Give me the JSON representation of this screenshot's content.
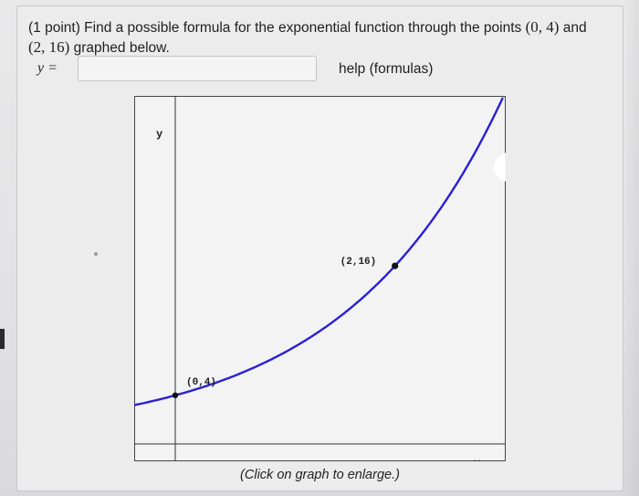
{
  "problem": {
    "text_line1": "(1 point) Find a possible formula for the exponential function through the points ",
    "point_a": "(0, 4)",
    "text_and": " and",
    "point_b": "(2, 16)",
    "text_line2": " graphed below."
  },
  "answer": {
    "label": "y =",
    "value": "",
    "placeholder": ""
  },
  "help_link": "help (formulas)",
  "graph": {
    "y_axis_label": "y",
    "x_axis_marker": "×",
    "point_a_label": "(0,4)",
    "point_b_label": "(2,16)",
    "caption": "(Click on graph to enlarge.)",
    "curve_color": "#2a1fd6",
    "axis_color": "#333333"
  },
  "chart_data": {
    "type": "line",
    "function": "y = 4·2^x",
    "points": [
      {
        "x": 0,
        "y": 4,
        "label": "(0,4)"
      },
      {
        "x": 2,
        "y": 16,
        "label": "(2,16)"
      }
    ],
    "xlim": [
      -0.4,
      3
    ],
    "ylim": [
      0,
      31
    ]
  }
}
